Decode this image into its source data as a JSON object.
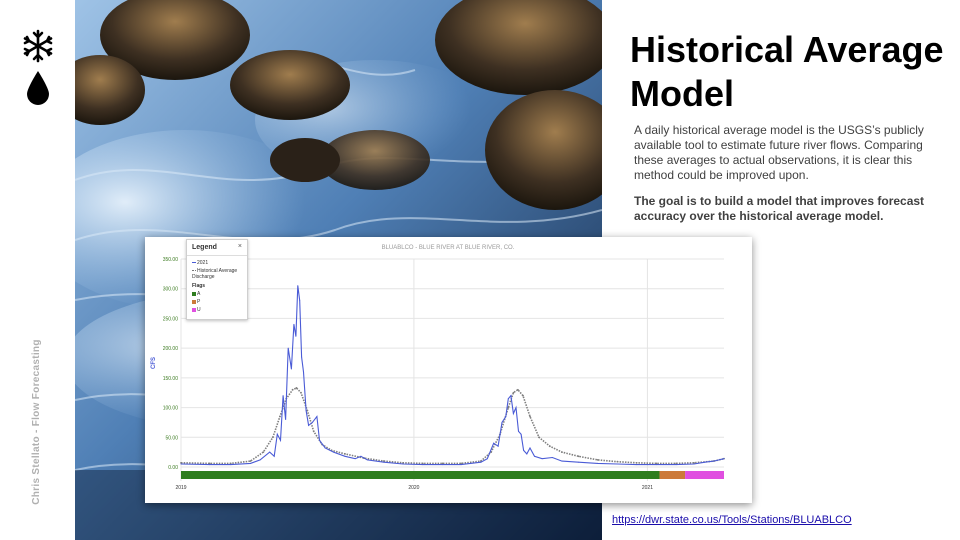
{
  "sidebar": {
    "icons": [
      "snowflake-icon",
      "water-drop-icon"
    ],
    "credit": "Chris Stellato - Flow Forecasting"
  },
  "slide": {
    "title": "Historical Average Model",
    "description": "A daily historical average model is the USGS’s publicly available tool to estimate future river flows. Comparing these averages to actual observations, it is clear this method could be improved upon.",
    "goal": "The goal is to build a model that improves forecast accuracy over the historical average model.",
    "source_link": "https://dwr.state.co.us/Tools/Stations/BLUABLCO"
  },
  "legend": {
    "header": "Legend",
    "close": "×",
    "flags_label": "Flags"
  },
  "colors": {
    "observed": "#4a5bd6",
    "historical": "#7f7f7f",
    "flag_a": "#2e7d1f",
    "flag_p": "#cc7a3a",
    "flag_u": "#e04fe0",
    "axis_label": "#4a5bd6",
    "tick_y": "#3a7a1f"
  },
  "chart_data": {
    "type": "line",
    "title": "BLUABLCO - BLUE RIVER AT BLUE RIVER, CO.",
    "ylabel": "CFS",
    "xlabel": "",
    "ylim": [
      0,
      350
    ],
    "xlim": [
      "2019-01-01",
      "2021-05-01"
    ],
    "y_ticks": [
      "0.00",
      "50.00",
      "100.00",
      "150.00",
      "200.00",
      "250.00",
      "300.00",
      "350.00"
    ],
    "x_ticks": [
      "2019",
      "2020",
      "2021"
    ],
    "grid": true,
    "legend_position": "top-left",
    "series": [
      {
        "name": "2021",
        "points": [
          [
            "2019-01-01",
            5
          ],
          [
            "2019-02-15",
            4
          ],
          [
            "2019-03-20",
            4
          ],
          [
            "2019-04-20",
            6
          ],
          [
            "2019-05-05",
            12
          ],
          [
            "2019-05-20",
            25
          ],
          [
            "2019-05-27",
            18
          ],
          [
            "2019-06-01",
            55
          ],
          [
            "2019-06-06",
            45
          ],
          [
            "2019-06-10",
            120
          ],
          [
            "2019-06-14",
            80
          ],
          [
            "2019-06-18",
            200
          ],
          [
            "2019-06-23",
            165
          ],
          [
            "2019-06-27",
            240
          ],
          [
            "2019-06-30",
            220
          ],
          [
            "2019-07-03",
            305
          ],
          [
            "2019-07-06",
            280
          ],
          [
            "2019-07-09",
            185
          ],
          [
            "2019-07-12",
            160
          ],
          [
            "2019-07-16",
            95
          ],
          [
            "2019-07-20",
            70
          ],
          [
            "2019-07-26",
            75
          ],
          [
            "2019-08-02",
            85
          ],
          [
            "2019-08-06",
            45
          ],
          [
            "2019-08-15",
            32
          ],
          [
            "2019-08-28",
            25
          ],
          [
            "2019-09-15",
            18
          ],
          [
            "2019-10-01",
            14
          ],
          [
            "2019-10-10",
            18
          ],
          [
            "2019-10-20",
            12
          ],
          [
            "2019-11-15",
            8
          ],
          [
            "2019-12-15",
            5
          ],
          [
            "2020-01-15",
            4
          ],
          [
            "2020-02-15",
            4
          ],
          [
            "2020-03-15",
            4
          ],
          [
            "2020-04-15",
            8
          ],
          [
            "2020-04-25",
            14
          ],
          [
            "2020-05-05",
            40
          ],
          [
            "2020-05-12",
            35
          ],
          [
            "2020-05-18",
            75
          ],
          [
            "2020-05-24",
            85
          ],
          [
            "2020-05-28",
            115
          ],
          [
            "2020-06-01",
            120
          ],
          [
            "2020-06-05",
            90
          ],
          [
            "2020-06-09",
            100
          ],
          [
            "2020-06-13",
            60
          ],
          [
            "2020-06-17",
            55
          ],
          [
            "2020-06-21",
            28
          ],
          [
            "2020-06-26",
            22
          ],
          [
            "2020-07-01",
            32
          ],
          [
            "2020-07-08",
            18
          ],
          [
            "2020-07-20",
            14
          ],
          [
            "2020-08-05",
            16
          ],
          [
            "2020-08-20",
            10
          ],
          [
            "2020-09-15",
            8
          ],
          [
            "2020-10-15",
            6
          ],
          [
            "2020-11-15",
            5
          ],
          [
            "2020-12-15",
            4
          ],
          [
            "2021-01-15",
            4
          ],
          [
            "2021-02-15",
            4
          ],
          [
            "2021-03-15",
            5
          ],
          [
            "2021-04-01",
            8
          ],
          [
            "2021-04-15",
            10
          ],
          [
            "2021-05-01",
            14
          ]
        ]
      },
      {
        "name": "Historical Average Discharge",
        "points": [
          [
            "2019-01-01",
            7
          ],
          [
            "2019-02-15",
            6
          ],
          [
            "2019-03-20",
            6
          ],
          [
            "2019-04-20",
            10
          ],
          [
            "2019-05-10",
            25
          ],
          [
            "2019-05-25",
            50
          ],
          [
            "2019-06-05",
            85
          ],
          [
            "2019-06-15",
            115
          ],
          [
            "2019-06-25",
            130
          ],
          [
            "2019-07-01",
            133
          ],
          [
            "2019-07-08",
            125
          ],
          [
            "2019-07-18",
            95
          ],
          [
            "2019-07-28",
            60
          ],
          [
            "2019-08-10",
            38
          ],
          [
            "2019-08-25",
            28
          ],
          [
            "2019-09-15",
            22
          ],
          [
            "2019-10-15",
            15
          ],
          [
            "2019-11-15",
            10
          ],
          [
            "2019-12-15",
            7
          ],
          [
            "2020-01-15",
            6
          ],
          [
            "2020-02-15",
            6
          ],
          [
            "2020-03-15",
            6
          ],
          [
            "2020-04-15",
            10
          ],
          [
            "2020-05-01",
            25
          ],
          [
            "2020-05-15",
            55
          ],
          [
            "2020-05-28",
            100
          ],
          [
            "2020-06-05",
            125
          ],
          [
            "2020-06-12",
            130
          ],
          [
            "2020-06-20",
            120
          ],
          [
            "2020-07-01",
            85
          ],
          [
            "2020-07-15",
            50
          ],
          [
            "2020-08-01",
            35
          ],
          [
            "2020-08-20",
            25
          ],
          [
            "2020-09-15",
            18
          ],
          [
            "2020-10-15",
            12
          ],
          [
            "2020-11-15",
            9
          ],
          [
            "2020-12-15",
            7
          ],
          [
            "2021-01-15",
            6
          ],
          [
            "2021-02-15",
            6
          ],
          [
            "2021-03-15",
            7
          ],
          [
            "2021-04-15",
            10
          ],
          [
            "2021-05-01",
            14
          ]
        ]
      }
    ],
    "flags": [
      {
        "name": "A",
        "start": "2019-01-01",
        "end": "2021-01-20"
      },
      {
        "name": "P",
        "start": "2021-01-20",
        "end": "2021-03-01"
      },
      {
        "name": "U",
        "start": "2021-03-01",
        "end": "2021-05-01"
      }
    ]
  }
}
